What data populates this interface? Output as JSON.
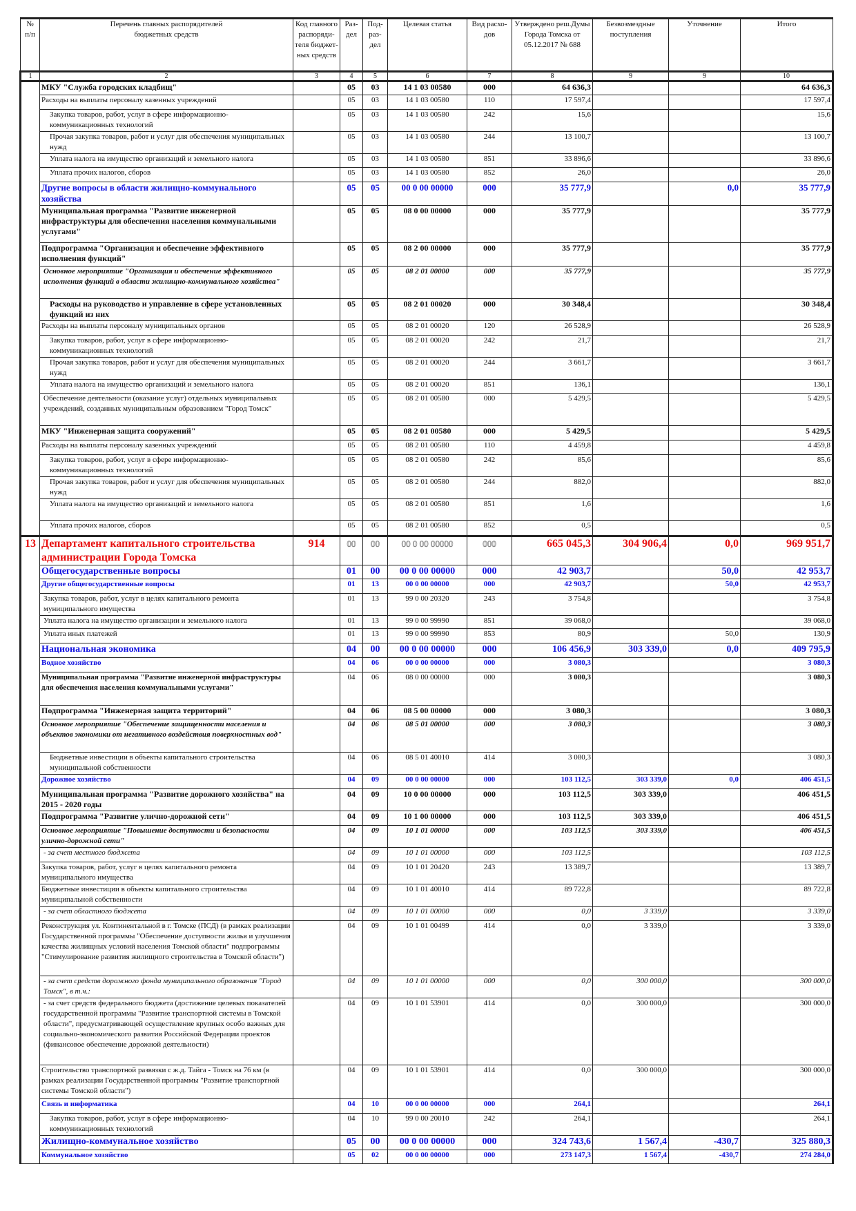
{
  "colors": {
    "section": "#1010e0",
    "department": "#e81010",
    "text": "#111111"
  },
  "header": {
    "columns": [
      "№\nп/п",
      "Перечень главных распорядителей\nбюджетных средств",
      "Код главного\nраспоряди-\nтеля бюджет-\nных средств",
      "Раз-\nдел",
      "Под-\nраз-\nдел",
      "Целевая статья",
      "Вид расхо-\nдов",
      "Утверждено реш.Думы\nГорода Томска от\n05.12.2017 № 688",
      "Безвозмездные\nпоступления",
      "Уточнение",
      "Итого"
    ],
    "numbers": [
      "1",
      "2",
      "3",
      "4",
      "5",
      "6",
      "7",
      "8",
      "9",
      "9",
      "10"
    ]
  },
  "department_number": "13",
  "rows": [
    {
      "name": "МКУ \"Служба городских кладбищ\"",
      "code": "",
      "rz": "05",
      "prz": "03",
      "cs": "14 1 03 00580",
      "vr": "000",
      "approved": "64 636,3",
      "grant": "",
      "adj": "",
      "total": "64 636,3"
    },
    {
      "name": "Расходы на выплаты персоналу казенных учреждений",
      "code": "",
      "rz": "05",
      "prz": "03",
      "cs": "14 1 03 00580",
      "vr": "110",
      "approved": "17 597,4",
      "grant": "",
      "adj": "",
      "total": "17 597,4"
    },
    {
      "name": "Закупка товаров, работ, услуг в сфере информационно-коммуникационных технологий",
      "code": "",
      "rz": "05",
      "prz": "03",
      "cs": "14 1 03 00580",
      "vr": "242",
      "approved": "15,6",
      "grant": "",
      "adj": "",
      "total": "15,6"
    },
    {
      "name": "Прочая закупка товаров, работ и услуг для обеспечения муниципальных нужд",
      "code": "",
      "rz": "05",
      "prz": "03",
      "cs": "14 1 03 00580",
      "vr": "244",
      "approved": "13 100,7",
      "grant": "",
      "adj": "",
      "total": "13 100,7"
    },
    {
      "name": "Уплата налога на имущество организаций и земельного налога",
      "code": "",
      "rz": "05",
      "prz": "03",
      "cs": "14 1 03 00580",
      "vr": "851",
      "approved": "33 896,6",
      "grant": "",
      "adj": "",
      "total": "33 896,6"
    },
    {
      "name": "Уплата прочих налогов, сборов",
      "code": "",
      "rz": "05",
      "prz": "03",
      "cs": "14 1 03 00580",
      "vr": "852",
      "approved": "26,0",
      "grant": "",
      "adj": "",
      "total": "26,0"
    },
    {
      "name": "Другие вопросы в области жилищно-коммунального хозяйства",
      "code": "",
      "rz": "05",
      "prz": "05",
      "cs": "00 0 00 00000",
      "vr": "000",
      "approved": "35 777,9",
      "grant": "",
      "adj": "0,0",
      "total": "35 777,9"
    },
    {
      "name": "Муниципальная программа \"Развитие инженерной инфраструктуры для обеспечения населения коммунальными услугами\"",
      "code": "",
      "rz": "05",
      "prz": "05",
      "cs": "08 0 00 00000",
      "vr": "000",
      "approved": "35 777,9",
      "grant": "",
      "adj": "",
      "total": "35 777,9"
    },
    {
      "name": "Подпрограмма \"Организация и обеспечение эффективного исполнения функций\"",
      "code": "",
      "rz": "05",
      "prz": "05",
      "cs": "08 2 00 00000",
      "vr": "000",
      "approved": "35 777,9",
      "grant": "",
      "adj": "",
      "total": "35 777,9"
    },
    {
      "name": "Основное мероприятие \"Организация и обеспечение эффективного исполнения функций в области жилищно-коммунального хозяйства\"",
      "code": "",
      "rz": "05",
      "prz": "05",
      "cs": "08 2 01 00000",
      "vr": "000",
      "approved": "35 777,9",
      "grant": "",
      "adj": "",
      "total": "35 777,9"
    },
    {
      "name": "Расходы на руководство и управление в сфере установленных функций из них",
      "code": "",
      "rz": "05",
      "prz": "05",
      "cs": "08 2 01 00020",
      "vr": "000",
      "approved": "30 348,4",
      "grant": "",
      "adj": "",
      "total": "30 348,4"
    },
    {
      "name": "Расходы на выплаты персоналу муниципальных органов",
      "code": "",
      "rz": "05",
      "prz": "05",
      "cs": "08 2 01 00020",
      "vr": "120",
      "approved": "26 528,9",
      "grant": "",
      "adj": "",
      "total": "26 528,9"
    },
    {
      "name": "Закупка товаров, работ, услуг в сфере информационно-коммуникационных технологий",
      "code": "",
      "rz": "05",
      "prz": "05",
      "cs": "08 2 01 00020",
      "vr": "242",
      "approved": "21,7",
      "grant": "",
      "adj": "",
      "total": "21,7"
    },
    {
      "name": "Прочая закупка товаров, работ и услуг для обеспечения муниципальных нужд",
      "code": "",
      "rz": "05",
      "prz": "05",
      "cs": "08 2 01 00020",
      "vr": "244",
      "approved": "3 661,7",
      "grant": "",
      "adj": "",
      "total": "3 661,7"
    },
    {
      "name": "Уплата налога на имущество организаций и земельного налога",
      "code": "",
      "rz": "05",
      "prz": "05",
      "cs": "08 2 01 00020",
      "vr": "851",
      "approved": "136,1",
      "grant": "",
      "adj": "",
      "total": "136,1"
    },
    {
      "name": "Обеспечение деятельности (оказание услуг) отдельных муниципальных учреждений, созданных муниципальным образованием \"Город Томск\"",
      "code": "",
      "rz": "05",
      "prz": "05",
      "cs": "08 2 01 00580",
      "vr": "000",
      "approved": "5 429,5",
      "grant": "",
      "adj": "",
      "total": "5 429,5"
    },
    {
      "name": "МКУ \"Инженерная защита сооружений\"",
      "code": "",
      "rz": "05",
      "prz": "05",
      "cs": "08 2 01 00580",
      "vr": "000",
      "approved": "5 429,5",
      "grant": "",
      "adj": "",
      "total": "5 429,5"
    },
    {
      "name": "Расходы на выплаты персоналу казенных учреждений",
      "code": "",
      "rz": "05",
      "prz": "05",
      "cs": "08 2 01 00580",
      "vr": "110",
      "approved": "4 459,8",
      "grant": "",
      "adj": "",
      "total": "4 459,8"
    },
    {
      "name": "Закупка товаров, работ, услуг в сфере информационно-коммуникационных технологий",
      "code": "",
      "rz": "05",
      "prz": "05",
      "cs": "08 2 01 00580",
      "vr": "242",
      "approved": "85,6",
      "grant": "",
      "adj": "",
      "total": "85,6"
    },
    {
      "name": "Прочая закупка товаров, работ и услуг для обеспечения муниципальных нужд",
      "code": "",
      "rz": "05",
      "prz": "05",
      "cs": "08 2 01 00580",
      "vr": "244",
      "approved": "882,0",
      "grant": "",
      "adj": "",
      "total": "882,0"
    },
    {
      "name": "Уплата налога на имущество организаций и земельного налога",
      "code": "",
      "rz": "05",
      "prz": "05",
      "cs": "08 2 01 00580",
      "vr": "851",
      "approved": "1,6",
      "grant": "",
      "adj": "",
      "total": "1,6"
    },
    {
      "name": "Уплата прочих налогов, сборов",
      "code": "",
      "rz": "05",
      "prz": "05",
      "cs": "08 2 01 00580",
      "vr": "852",
      "approved": "0,5",
      "grant": "",
      "adj": "",
      "total": "0,5"
    },
    {
      "name": "Департамент капитального строительства администрации Города Томска",
      "code": "914",
      "rz": "00",
      "prz": "00",
      "cs": "00 0 00 00000",
      "vr": "000",
      "approved": "665 045,3",
      "grant": "304 906,4",
      "adj": "0,0",
      "total": "969 951,7"
    },
    {
      "name": "Общегосударственные вопросы",
      "code": "",
      "rz": "01",
      "prz": "00",
      "cs": "00 0 00 00000",
      "vr": "000",
      "approved": "42 903,7",
      "grant": "",
      "adj": "50,0",
      "total": "42 953,7"
    },
    {
      "name": "Другие общегосударственные вопросы",
      "code": "",
      "rz": "01",
      "prz": "13",
      "cs": "00 0 00 00000",
      "vr": "000",
      "approved": "42 903,7",
      "grant": "",
      "adj": "50,0",
      "total": "42 953,7"
    },
    {
      "name": "Закупка товаров, работ, услуг в целях капитального ремонта муниципального имущества",
      "code": "",
      "rz": "01",
      "prz": "13",
      "cs": "99 0 00 20320",
      "vr": "243",
      "approved": "3 754,8",
      "grant": "",
      "adj": "",
      "total": "3 754,8"
    },
    {
      "name": "Уплата налога на имущество организации и земельного налога",
      "code": "",
      "rz": "01",
      "prz": "13",
      "cs": "99 0 00 99990",
      "vr": "851",
      "approved": "39 068,0",
      "grant": "",
      "adj": "",
      "total": "39 068,0"
    },
    {
      "name": "Уплата иных платежей",
      "code": "",
      "rz": "01",
      "prz": "13",
      "cs": "99 0 00 99990",
      "vr": "853",
      "approved": "80,9",
      "grant": "",
      "adj": "50,0",
      "total": "130,9"
    },
    {
      "name": "Национальная экономика",
      "code": "",
      "rz": "04",
      "prz": "00",
      "cs": "00 0 00 00000",
      "vr": "000",
      "approved": "106 456,9",
      "grant": "303 339,0",
      "adj": "0,0",
      "total": "409 795,9"
    },
    {
      "name": "Водное хозяйство",
      "code": "",
      "rz": "04",
      "prz": "06",
      "cs": "00 0 00 00000",
      "vr": "000",
      "approved": "3 080,3",
      "grant": "",
      "adj": "",
      "total": "3 080,3"
    },
    {
      "name": "Муниципальная программа \"Развитие инженерной инфраструктуры для обеспечения населения коммунальными услугами\"",
      "code": "",
      "rz": "04",
      "prz": "06",
      "cs": "08 0 00 00000",
      "vr": "000",
      "approved": "3 080,3",
      "grant": "",
      "adj": "",
      "total": "3 080,3"
    },
    {
      "name": "Подпрограмма \"Инженерная защита территорий\"",
      "code": "",
      "rz": "04",
      "prz": "06",
      "cs": "08 5 00 00000",
      "vr": "000",
      "approved": "3 080,3",
      "grant": "",
      "adj": "",
      "total": "3 080,3"
    },
    {
      "name": "Основное мероприятие  \"Обеспечение защищенности населения и объектов экономики от негативного воздействия поверхностных вод\"",
      "code": "",
      "rz": "04",
      "prz": "06",
      "cs": "08 5 01 00000",
      "vr": "000",
      "approved": "3 080,3",
      "grant": "",
      "adj": "",
      "total": "3 080,3"
    },
    {
      "name": "Бюджетные инвестиции в объекты капитального строительства муниципальной собственности",
      "code": "",
      "rz": "04",
      "prz": "06",
      "cs": "08 5 01 40010",
      "vr": "414",
      "approved": "3 080,3",
      "grant": "",
      "adj": "",
      "total": "3 080,3"
    },
    {
      "name": "Дорожное хозяйство",
      "code": "",
      "rz": "04",
      "prz": "09",
      "cs": "00 0 00 00000",
      "vr": "000",
      "approved": "103 112,5",
      "grant": "303 339,0",
      "adj": "0,0",
      "total": "406 451,5"
    },
    {
      "name": "Муниципальная программа \"Развитие дорожного хозяйства\" на 2015 - 2020 годы",
      "code": "",
      "rz": "04",
      "prz": "09",
      "cs": "10 0 00 00000",
      "vr": "000",
      "approved": "103 112,5",
      "grant": "303 339,0",
      "adj": "",
      "total": "406 451,5"
    },
    {
      "name": "Подпрограмма \"Развитие улично-дорожной сети\"",
      "code": "",
      "rz": "04",
      "prz": "09",
      "cs": "10 1 00 00000",
      "vr": "000",
      "approved": "103 112,5",
      "grant": "303 339,0",
      "adj": "",
      "total": "406 451,5"
    },
    {
      "name": "Основное мероприятие \"Повышение доступности и безопасности улично-дорожной сети\"",
      "code": "",
      "rz": "04",
      "prz": "09",
      "cs": "10 1 01 00000",
      "vr": "000",
      "approved": "103 112,5",
      "grant": "303 339,0",
      "adj": "",
      "total": "406 451,5"
    },
    {
      "name": "- за счет местного бюджета",
      "code": "",
      "rz": "04",
      "prz": "09",
      "cs": "10 1 01 00000",
      "vr": "000",
      "approved": "103 112,5",
      "grant": "",
      "adj": "",
      "total": "103 112,5"
    },
    {
      "name": "Закупка товаров, работ, услуг в целях капитального ремонта муниципального имущества",
      "code": "",
      "rz": "04",
      "prz": "09",
      "cs": "10 1 01 20420",
      "vr": "243",
      "approved": "13 389,7",
      "grant": "",
      "adj": "",
      "total": "13 389,7"
    },
    {
      "name": "Бюджетные инвестиции в объекты капитального строительства муниципальной собственности",
      "code": "",
      "rz": "04",
      "prz": "09",
      "cs": "10 1 01 40010",
      "vr": "414",
      "approved": "89 722,8",
      "grant": "",
      "adj": "",
      "total": "89 722,8"
    },
    {
      "name": "- за счет областного бюджета",
      "code": "",
      "rz": "04",
      "prz": "09",
      "cs": "10 1 01 00000",
      "vr": "000",
      "approved": "0,0",
      "grant": "3 339,0",
      "adj": "",
      "total": "3 339,0"
    },
    {
      "name": "Реконструкция ул. Континентальной в г. Томске (ПСД) (в рамках реализации Государственной программы \"Обеспечение доступности жилья и улучшения качества жилищных условий населения Томской области\" подпрограммы \"Стимулирование развития жилищного строительства в Томской области\")",
      "code": "",
      "rz": "04",
      "prz": "09",
      "cs": "10 1 01 00499",
      "vr": "414",
      "approved": "0,0",
      "grant": "3 339,0",
      "adj": "",
      "total": "3 339,0"
    },
    {
      "name": "- за счет средств дорожного фонда муниципального образования \"Город Томск\", в т.ч.:",
      "code": "",
      "rz": "04",
      "prz": "09",
      "cs": "10 1 01 00000",
      "vr": "000",
      "approved": "0,0",
      "grant": "300 000,0",
      "adj": "",
      "total": "300 000,0"
    },
    {
      "name": "- за счет средств федерального бюджета (достижение целевых показателей государственной программы \"Развитие транспортной системы в Томской области\", предусматривающей осуществление крупных особо важных для социально-экономического развития Российской Федерации проектов (финансовое обеспечение дорожной деятельности)",
      "code": "",
      "rz": "04",
      "prz": "09",
      "cs": "10 1 01 53901",
      "vr": "414",
      "approved": "0,0",
      "grant": "300 000,0",
      "adj": "",
      "total": "300 000,0"
    },
    {
      "name": "Строительство транспортной развязки с ж.д. Тайга - Томск на 76 км (в рамках реализации Государственной программы \"Развитие транспортной системы Томской области\")",
      "code": "",
      "rz": "04",
      "prz": "09",
      "cs": "10 1 01 53901",
      "vr": "414",
      "approved": "0,0",
      "grant": "300 000,0",
      "adj": "",
      "total": "300 000,0"
    },
    {
      "name": "Связь и информатика",
      "code": "",
      "rz": "04",
      "prz": "10",
      "cs": "00 0 00 00000",
      "vr": "000",
      "approved": "264,1",
      "grant": "",
      "adj": "",
      "total": "264,1"
    },
    {
      "name": "Закупка товаров, работ, услуг в сфере информационно-коммуникационных технологий",
      "code": "",
      "rz": "04",
      "prz": "10",
      "cs": "99 0 00 20010",
      "vr": "242",
      "approved": "264,1",
      "grant": "",
      "adj": "",
      "total": "264,1"
    },
    {
      "name": "Жилищно-коммунальное хозяйство",
      "code": "",
      "rz": "05",
      "prz": "00",
      "cs": "00 0 00 00000",
      "vr": "000",
      "approved": "324 743,6",
      "grant": "1 567,4",
      "adj": "-430,7",
      "total": "325 880,3"
    },
    {
      "name": "Коммунальное хозяйство",
      "code": "",
      "rz": "05",
      "prz": "02",
      "cs": "00 0 00 00000",
      "vr": "000",
      "approved": "273 147,3",
      "grant": "1 567,4",
      "adj": "-430,7",
      "total": "274 284,0"
    }
  ]
}
